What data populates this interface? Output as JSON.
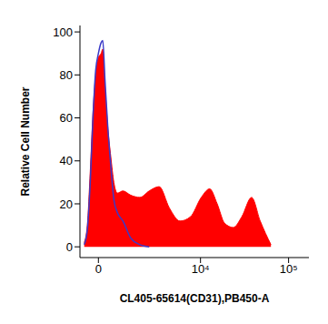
{
  "chart_data": {
    "type": "area",
    "x_label": "CL405-65614(CD31),PB450-A",
    "y_label": "Relative Cell Number",
    "log": "x",
    "x": [
      -530,
      -410,
      -300,
      -200,
      -100,
      0,
      100,
      160,
      240,
      350,
      460,
      580,
      720,
      960,
      1330,
      1830,
      2450,
      3270,
      4360,
      5790,
      7670,
      10200,
      12700,
      15500,
      18800,
      23600,
      29500,
      38100,
      47700,
      63100
    ],
    "series": [
      {
        "type": "area",
        "color": "#ff0000",
        "values": [
          2,
          10,
          35,
          62,
          80,
          88,
          90,
          92,
          75,
          55,
          42,
          30,
          25,
          26,
          24,
          23,
          26,
          28,
          18,
          12,
          14,
          23,
          27,
          20,
          11,
          9,
          14,
          23,
          12,
          1
        ]
      },
      {
        "type": "line",
        "color": "#3a3ac8",
        "values": [
          1,
          8,
          30,
          60,
          82,
          90,
          95,
          96,
          78,
          55,
          38,
          22,
          16,
          12,
          4,
          1,
          0,
          null,
          null,
          null,
          null,
          null,
          null,
          null,
          null,
          null,
          null,
          null,
          null,
          null
        ]
      }
    ],
    "xlim": [
      -700,
      170000
    ],
    "xticks": [
      0,
      {
        "value": 10000,
        "label": "10⁴"
      },
      {
        "value": 100000,
        "label": "10⁵"
      }
    ],
    "ylim": [
      -5,
      103
    ],
    "yticks": [
      0,
      20,
      40,
      60,
      80,
      100
    ]
  }
}
